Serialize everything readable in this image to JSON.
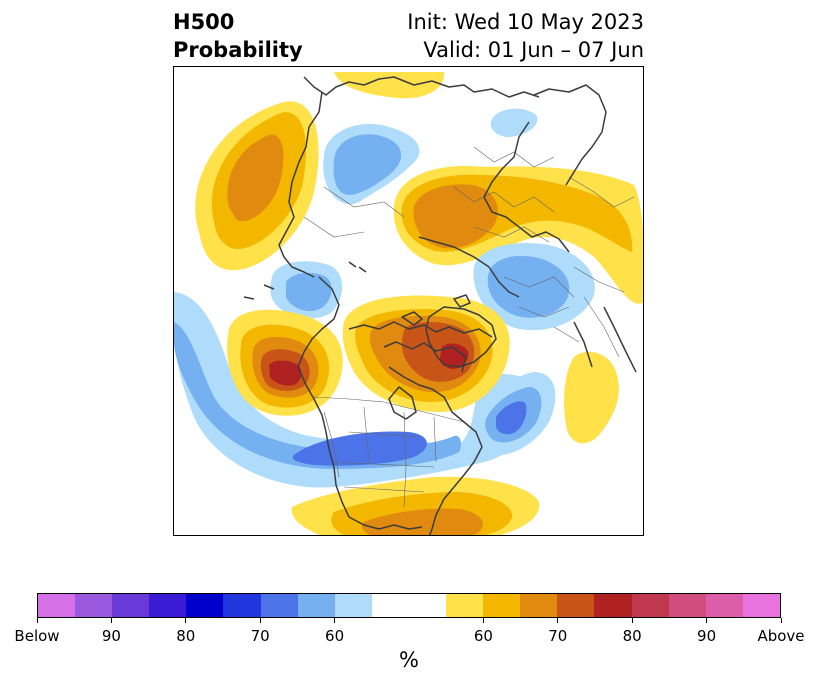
{
  "title": {
    "left_line1": "H500",
    "left_line2": "Probability",
    "right_line1": "Init: Wed 10 May 2023",
    "right_line2": "Valid: 01 Jun – 07 Jun"
  },
  "colorbar": {
    "units": "%",
    "colors": [
      "#d670e6",
      "#9b59e0",
      "#6a3ad9",
      "#3a1bd6",
      "#0000cd",
      "#2236dd",
      "#4d73e8",
      "#75b0f0",
      "#aedcfa",
      "#ffffff",
      "#ffffff",
      "#ffe14a",
      "#f3b700",
      "#e08a10",
      "#c85418",
      "#b02222",
      "#c0384e",
      "#d04d7d",
      "#dc5da8",
      "#e873de"
    ],
    "tick_labels": [
      "Below",
      "90",
      "80",
      "70",
      "60",
      "60",
      "70",
      "80",
      "90",
      "Above"
    ]
  },
  "palette": {
    "blue_light": "#aedcfa",
    "blue_mid": "#75b0f0",
    "blue_dark": "#4d73e8",
    "yellow": "#ffe14a",
    "gold": "#f3b700",
    "orange": "#e08a10",
    "rust": "#c85418",
    "red": "#b02222",
    "coast": "#3c3c3c",
    "border": "#555555"
  }
}
